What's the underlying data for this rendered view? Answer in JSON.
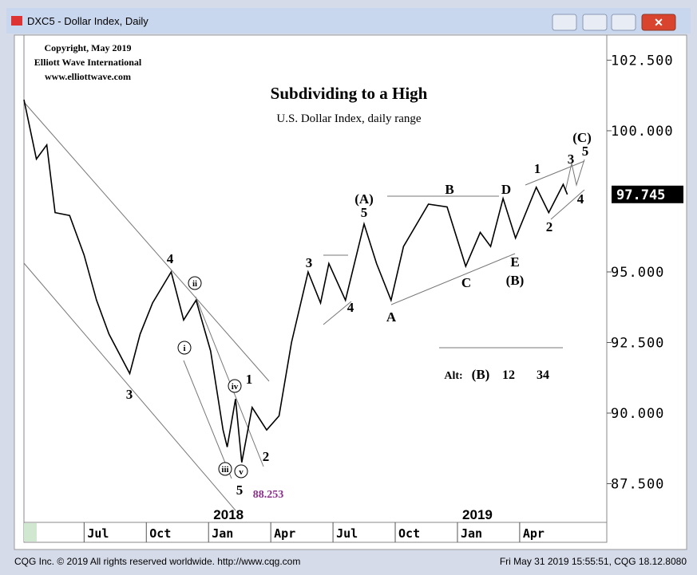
{
  "window_title": "DXC5 - Dollar Index, Daily",
  "footer": {
    "left": "CQG Inc. © 2019 All rights reserved worldwide. http://www.cqg.com",
    "right": "Fri May 31 2019 15:55:51, CQG 18.12.8080"
  },
  "chart_data": {
    "type": "line",
    "title": "Subdividing to a High",
    "subtitle": "U.S. Dollar Index, daily range",
    "copyright": [
      "Copyright, May 2019",
      "Elliott Wave International",
      "www.elliottwave.com"
    ],
    "series": [
      {
        "name": "DXC5",
        "color": "#000000",
        "x": [
          3.1,
          3.7,
          4.2,
          4.6,
          5.3,
          6.0,
          6.6,
          7.2,
          8.2,
          8.7,
          9.3,
          10.2,
          10.8,
          11.4,
          12.1,
          12.7,
          12.9,
          13.3,
          13.6,
          14.1,
          14.8,
          15.4,
          16.0,
          16.8,
          17.4,
          17.8,
          18.6,
          19.5,
          20.1,
          20.8,
          21.4,
          22.6,
          23.5,
          24.4,
          25.1,
          25.6,
          26.2,
          26.8,
          27.8,
          28.4,
          29.1,
          29.3
        ],
        "values": [
          101.1,
          99.0,
          99.5,
          97.1,
          97.0,
          95.6,
          94.0,
          92.8,
          91.4,
          92.8,
          93.9,
          95.0,
          93.3,
          94.0,
          92.2,
          89.4,
          88.8,
          90.5,
          88.253,
          90.2,
          89.4,
          89.9,
          92.5,
          95.0,
          93.9,
          95.3,
          94.0,
          96.7,
          95.3,
          94.0,
          95.9,
          97.4,
          97.3,
          95.2,
          96.4,
          95.9,
          97.6,
          96.2,
          98.0,
          97.1,
          98.1,
          97.745
        ]
      }
    ],
    "xlim": [
      3.1,
      31.2
    ],
    "xticks": [
      {
        "value": 6,
        "label": "Jul"
      },
      {
        "value": 9,
        "label": "Oct"
      },
      {
        "value": 12,
        "label": "Jan"
      },
      {
        "value": 15,
        "label": "Apr"
      },
      {
        "value": 18,
        "label": "Jul"
      },
      {
        "value": 21,
        "label": "Oct"
      },
      {
        "value": 24,
        "label": "Jan"
      },
      {
        "value": 27,
        "label": "Apr"
      }
    ],
    "year_labels": [
      {
        "value": 12,
        "label": "2018"
      },
      {
        "value": 24,
        "label": "2019"
      }
    ],
    "ylim": [
      86.13,
      103.36
    ],
    "yticks": [
      {
        "value": 87.5,
        "label": "87.500"
      },
      {
        "value": 90,
        "label": "90.000"
      },
      {
        "value": 92.5,
        "label": "92.500"
      },
      {
        "value": 95,
        "label": "95.000"
      },
      {
        "value": 100,
        "label": "100.000"
      },
      {
        "value": 102.5,
        "label": "102.500"
      }
    ],
    "last_price": {
      "value": 97.745,
      "label": "97.745"
    },
    "annotations": [
      "3",
      "4",
      "ii",
      "i",
      "iv",
      "1",
      "iii",
      "v",
      "5",
      "2",
      "88.253",
      "3",
      "4",
      "(A)",
      "5",
      "A",
      "B",
      "C",
      "D",
      "E",
      "(B)",
      "1",
      "2",
      "3",
      "(C)",
      "5",
      "4"
    ],
    "alt_labels": [
      "Alt:",
      "(B)",
      "12",
      "34"
    ]
  }
}
